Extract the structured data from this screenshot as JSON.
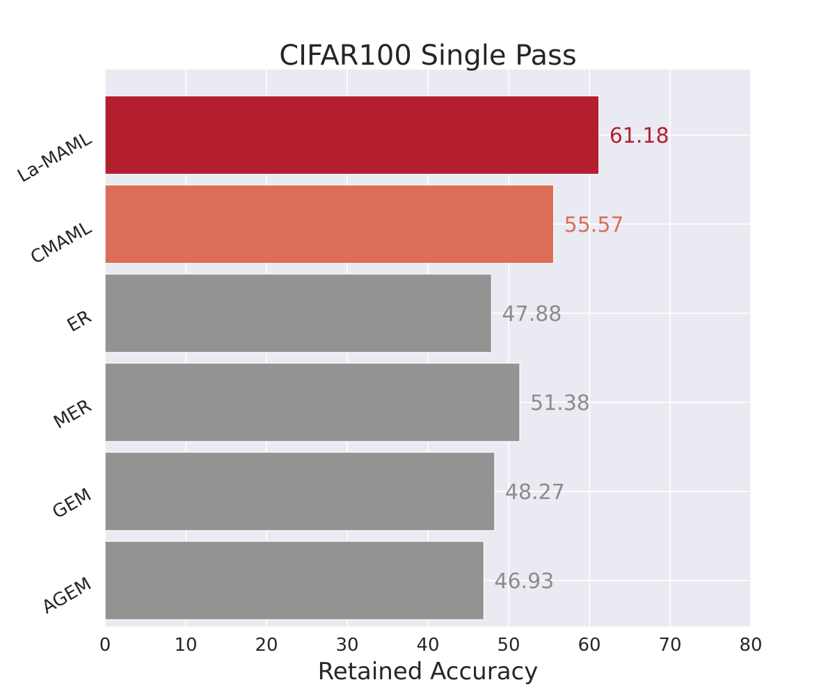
{
  "chart_data": {
    "type": "bar",
    "orientation": "horizontal",
    "title": "CIFAR100 Single Pass",
    "xlabel": "Retained Accuracy",
    "ylabel": "",
    "xlim": [
      0,
      80
    ],
    "x_ticks": [
      "0",
      "10",
      "20",
      "30",
      "40",
      "50",
      "60",
      "70",
      "80"
    ],
    "categories": [
      "La-MAML",
      "CMAML",
      "ER",
      "MER",
      "GEM",
      "AGEM"
    ],
    "values": [
      61.18,
      55.57,
      47.88,
      51.38,
      48.27,
      46.93
    ],
    "value_labels": [
      "61.18",
      "55.57",
      "47.88",
      "51.38",
      "48.27",
      "46.93"
    ],
    "colors": [
      "#b41f2f",
      "#dc6e58",
      "#939393",
      "#939393",
      "#939393",
      "#939393"
    ],
    "label_colors": [
      "#b41f2f",
      "#dc6e58",
      "#8c8c8c",
      "#8c8c8c",
      "#8c8c8c",
      "#8c8c8c"
    ],
    "background": "#eaeaf2",
    "grid": true
  }
}
